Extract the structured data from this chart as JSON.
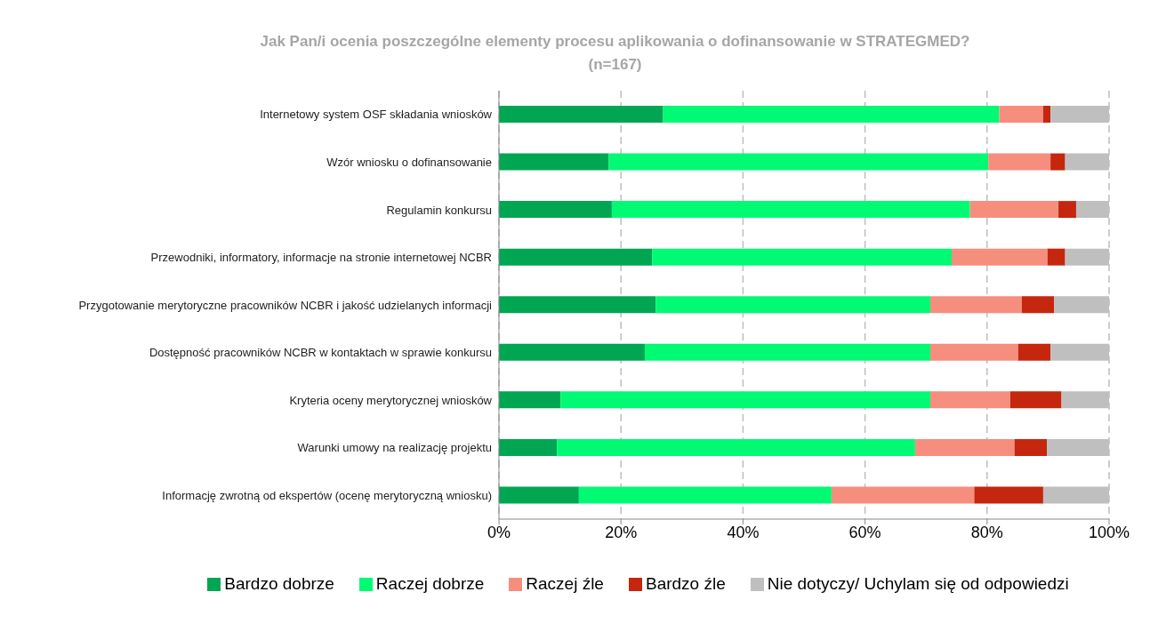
{
  "chart_data": {
    "type": "bar",
    "orientation": "horizontal",
    "stacked": true,
    "title": "Jak Pan/i ocenia poszczególne elementy procesu aplikowania o dofinansowanie w STRATEGMED?",
    "subtitle": "(n=167)",
    "categories": [
      "Internetowy system OSF składania wniosków",
      "Wzór wniosku o dofinansowanie",
      "Regulamin konkursu",
      "Przewodniki, informatory, informacje na stronie internetowej NCBR",
      "Przygotowanie merytoryczne pracowników NCBR i jakość udzielanych informacji",
      "Dostępność pracowników NCBR w kontaktach w sprawie konkursu",
      "Kryteria oceny merytorycznej wniosków",
      "Warunki umowy na realizację projektu",
      "Informację zwrotną od ekspertów (ocenę merytoryczną wniosku)"
    ],
    "series": [
      {
        "name": "Bardzo dobrze",
        "color": "#00a651",
        "values": [
          26.9,
          18.0,
          18.5,
          25.1,
          25.7,
          23.9,
          10.1,
          9.5,
          13.1
        ]
      },
      {
        "name": "Raczej dobrze",
        "color": "#00fa74",
        "values": [
          55.1,
          62.2,
          58.7,
          49.1,
          45.0,
          46.8,
          60.6,
          58.7,
          41.4
        ]
      },
      {
        "name": "Raczej źle",
        "color": "#f68e7e",
        "values": [
          7.2,
          10.2,
          14.5,
          15.7,
          15.0,
          14.4,
          13.1,
          16.3,
          23.4
        ]
      },
      {
        "name": "Bardzo źle",
        "color": "#c4260e",
        "values": [
          1.2,
          2.4,
          2.9,
          2.9,
          5.3,
          5.3,
          8.4,
          5.3,
          11.3
        ]
      },
      {
        "name": "Nie dotyczy/ Uchylam się od odpowiedzi",
        "color": "#bfbfbf",
        "values": [
          9.6,
          7.2,
          5.4,
          7.2,
          9.0,
          9.6,
          7.8,
          10.2,
          10.8
        ]
      }
    ],
    "xlim": [
      0,
      100
    ],
    "xticks": [
      {
        "value": 0,
        "label": "0%"
      },
      {
        "value": 20,
        "label": "20%"
      },
      {
        "value": 40,
        "label": "40%"
      },
      {
        "value": 60,
        "label": "60%"
      },
      {
        "value": 80,
        "label": "80%"
      },
      {
        "value": 100,
        "label": "100%"
      }
    ],
    "grid": "x",
    "legend": "bottom"
  }
}
